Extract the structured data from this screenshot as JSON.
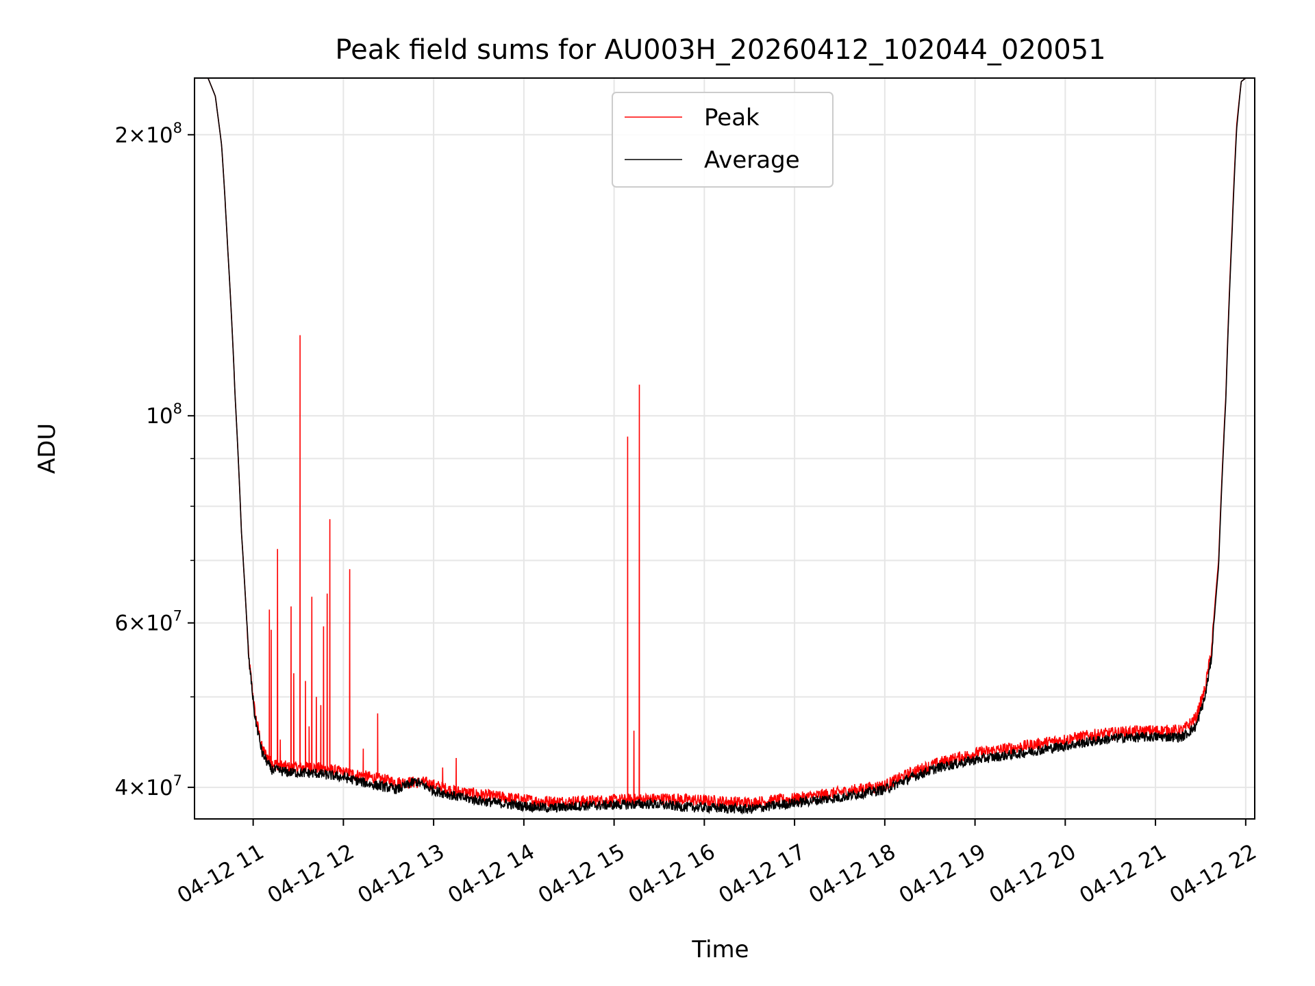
{
  "chart_data": {
    "type": "line",
    "title": "Peak field sums for AU003H_20260412_102044_020051",
    "xlabel": "Time",
    "ylabel": "ADU",
    "yscale": "log",
    "xlim": [
      10.35,
      22.1
    ],
    "ylim": [
      37000000,
      230000000
    ],
    "grid": true,
    "legend_position": "upper-center",
    "x_ticks": [
      {
        "value": 11,
        "label": "04-12 11"
      },
      {
        "value": 12,
        "label": "04-12 12"
      },
      {
        "value": 13,
        "label": "04-12 13"
      },
      {
        "value": 14,
        "label": "04-12 14"
      },
      {
        "value": 15,
        "label": "04-12 15"
      },
      {
        "value": 16,
        "label": "04-12 16"
      },
      {
        "value": 17,
        "label": "04-12 17"
      },
      {
        "value": 18,
        "label": "04-12 18"
      },
      {
        "value": 19,
        "label": "04-12 19"
      },
      {
        "value": 20,
        "label": "04-12 20"
      },
      {
        "value": 21,
        "label": "04-12 21"
      },
      {
        "value": 22,
        "label": "04-12 22"
      }
    ],
    "y_major_ticks": [
      {
        "value": 40000000,
        "mantissa": "4",
        "exponent": "7"
      },
      {
        "value": 60000000,
        "mantissa": "6",
        "exponent": "7"
      },
      {
        "value": 100000000,
        "mantissa": "",
        "exponent": "8"
      },
      {
        "value": 200000000,
        "mantissa": "2",
        "exponent": "8"
      }
    ],
    "y_minor_ticks": [
      50000000,
      70000000,
      80000000,
      90000000
    ],
    "series": [
      {
        "name": "Peak",
        "color": "#ff0000",
        "baseline": [
          [
            10.35,
            230000000
          ],
          [
            10.5,
            230000000
          ],
          [
            10.58,
            220000000
          ],
          [
            10.65,
            195000000
          ],
          [
            10.72,
            150000000
          ],
          [
            10.8,
            105000000
          ],
          [
            10.87,
            75000000
          ],
          [
            10.95,
            55000000
          ],
          [
            11.02,
            48000000
          ],
          [
            11.1,
            44000000
          ],
          [
            11.2,
            42500000
          ],
          [
            11.4,
            42000000
          ],
          [
            11.7,
            42000000
          ],
          [
            12.0,
            41500000
          ],
          [
            12.3,
            41000000
          ],
          [
            12.6,
            40500000
          ],
          [
            12.9,
            40500000
          ],
          [
            13.2,
            39700000
          ],
          [
            13.5,
            39300000
          ],
          [
            13.8,
            39000000
          ],
          [
            14.1,
            38700000
          ],
          [
            14.4,
            38600000
          ],
          [
            14.8,
            38700000
          ],
          [
            15.2,
            38800000
          ],
          [
            15.6,
            38900000
          ],
          [
            16.0,
            38700000
          ],
          [
            16.5,
            38500000
          ],
          [
            17.0,
            38900000
          ],
          [
            17.5,
            39500000
          ],
          [
            18.0,
            40200000
          ],
          [
            18.3,
            41500000
          ],
          [
            18.6,
            42500000
          ],
          [
            19.0,
            43500000
          ],
          [
            19.5,
            44200000
          ],
          [
            20.0,
            45000000
          ],
          [
            20.3,
            45500000
          ],
          [
            20.6,
            45800000
          ],
          [
            21.0,
            46000000
          ],
          [
            21.3,
            46000000
          ],
          [
            21.45,
            47500000
          ],
          [
            21.55,
            51000000
          ],
          [
            21.62,
            56000000
          ],
          [
            21.7,
            70000000
          ],
          [
            21.78,
            105000000
          ],
          [
            21.85,
            160000000
          ],
          [
            21.9,
            205000000
          ],
          [
            21.95,
            228000000
          ],
          [
            22.0,
            230000000
          ],
          [
            22.1,
            230000000
          ]
        ],
        "spikes": [
          [
            11.18,
            62000000
          ],
          [
            11.2,
            59000000
          ],
          [
            11.27,
            72000000
          ],
          [
            11.3,
            45000000
          ],
          [
            11.42,
            62500000
          ],
          [
            11.45,
            53000000
          ],
          [
            11.52,
            122000000
          ],
          [
            11.58,
            52000000
          ],
          [
            11.62,
            46500000
          ],
          [
            11.65,
            64000000
          ],
          [
            11.7,
            50000000
          ],
          [
            11.75,
            49000000
          ],
          [
            11.78,
            59500000
          ],
          [
            11.82,
            64500000
          ],
          [
            11.85,
            77500000
          ],
          [
            12.07,
            68500000
          ],
          [
            12.22,
            44000000
          ],
          [
            12.38,
            48000000
          ],
          [
            13.1,
            42000000
          ],
          [
            13.25,
            43000000
          ],
          [
            15.15,
            95000000
          ],
          [
            15.22,
            46000000
          ],
          [
            15.28,
            108000000
          ]
        ]
      },
      {
        "name": "Average",
        "color": "#000000",
        "baseline": [
          [
            10.35,
            230000000
          ],
          [
            10.5,
            230000000
          ],
          [
            10.58,
            220000000
          ],
          [
            10.65,
            195000000
          ],
          [
            10.72,
            150000000
          ],
          [
            10.8,
            105000000
          ],
          [
            10.87,
            75000000
          ],
          [
            10.95,
            55000000
          ],
          [
            11.02,
            47500000
          ],
          [
            11.1,
            43500000
          ],
          [
            11.2,
            41800000
          ],
          [
            11.4,
            41500000
          ],
          [
            11.7,
            41400000
          ],
          [
            12.0,
            41000000
          ],
          [
            12.3,
            40300000
          ],
          [
            12.6,
            39800000
          ],
          [
            12.8,
            40600000
          ],
          [
            13.0,
            39700000
          ],
          [
            13.3,
            39000000
          ],
          [
            13.6,
            38600000
          ],
          [
            14.0,
            38200000
          ],
          [
            14.3,
            38000000
          ],
          [
            14.6,
            38200000
          ],
          [
            15.0,
            38300000
          ],
          [
            15.4,
            38400000
          ],
          [
            15.8,
            38100000
          ],
          [
            16.2,
            38000000
          ],
          [
            16.5,
            37900000
          ],
          [
            17.0,
            38500000
          ],
          [
            17.5,
            39000000
          ],
          [
            18.0,
            39800000
          ],
          [
            18.3,
            41000000
          ],
          [
            18.6,
            42000000
          ],
          [
            19.0,
            42800000
          ],
          [
            19.5,
            43500000
          ],
          [
            20.0,
            44300000
          ],
          [
            20.3,
            44800000
          ],
          [
            20.6,
            45200000
          ],
          [
            21.0,
            45300000
          ],
          [
            21.3,
            45300000
          ],
          [
            21.45,
            46500000
          ],
          [
            21.55,
            50000000
          ],
          [
            21.62,
            55000000
          ],
          [
            21.7,
            69000000
          ],
          [
            21.78,
            104000000
          ],
          [
            21.85,
            158000000
          ],
          [
            21.9,
            203000000
          ],
          [
            21.95,
            228000000
          ],
          [
            22.0,
            230000000
          ],
          [
            22.1,
            230000000
          ]
        ]
      }
    ]
  }
}
